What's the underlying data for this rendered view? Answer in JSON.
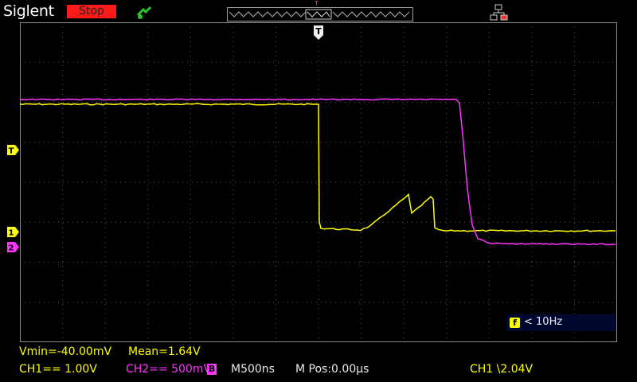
{
  "header": {
    "brand": "Siglent",
    "run_state": "Stop",
    "run_state_color": "#ff1a1a",
    "trigger_position_marker": "T",
    "icons": [
      "trigger-status-icon",
      "network-icon"
    ]
  },
  "screen": {
    "grid_divisions_horizontal": 14,
    "grid_divisions_vertical": 8,
    "trigger_marker": "T",
    "channel_markers": [
      {
        "label": "T",
        "meaning": "trigger level",
        "color": "#ffff00"
      },
      {
        "label": "1",
        "meaning": "CH1 ground",
        "color": "#ffff00"
      },
      {
        "label": "2",
        "meaning": "CH2 ground",
        "color": "#ff33ff"
      }
    ],
    "traces": {
      "ch1_color": "#ffff00",
      "ch2_color": "#ff33ff"
    }
  },
  "frequency": {
    "badge": "f",
    "text": "< 10Hz"
  },
  "measurements": {
    "vmin": "Vmin=-40.00mV",
    "mean": "Mean=1.64V"
  },
  "status_bar": {
    "ch1": "CH1== 1.00V",
    "ch2": "CH2== 500mV",
    "bw_limit_badge": "B",
    "timebase": "M500ns",
    "hpos": "M Pos:0.00µs",
    "trigger": "CH1 \\2.04V"
  }
}
